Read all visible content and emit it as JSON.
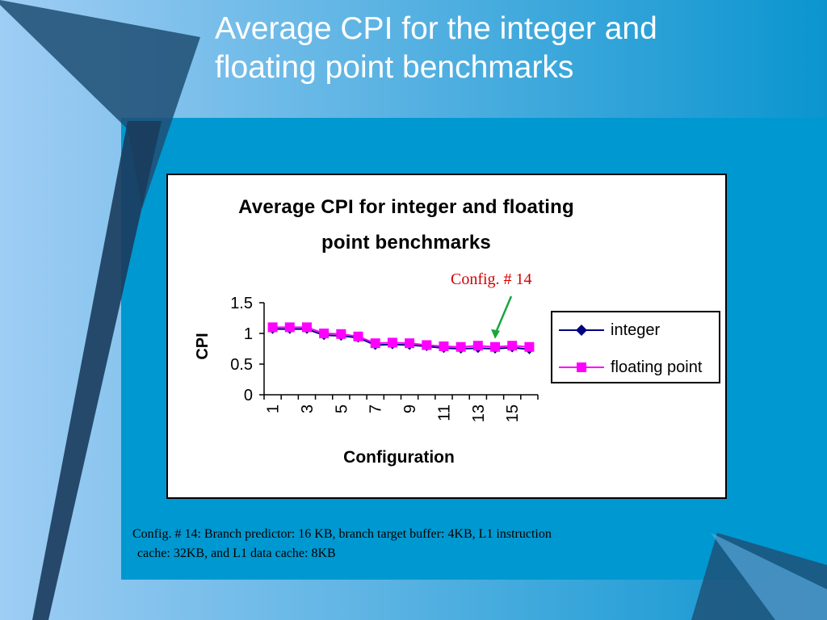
{
  "slide": {
    "title_line1": "Average CPI for the integer and",
    "title_line2": "floating point benchmarks",
    "footnote_line1": "Config. # 14: Branch predictor: 16 KB, branch target buffer: 4KB, L1 instruction",
    "footnote_line2": "cache: 32KB, and L1 data cache: 8KB",
    "colors": {
      "background_light": "#8dc3f0",
      "background_mid": "#0a96cf",
      "dark_band": "#1f4e73",
      "title_text": "#ffffff"
    }
  },
  "annotation": {
    "text": "Config. # 14",
    "color": "#d40000",
    "arrow_color": "#1aa63c",
    "target_configuration": 14
  },
  "chart_data": {
    "type": "line",
    "title_line1": "Average CPI for integer and floating",
    "title_line2": "point benchmarks",
    "xlabel": "Configuration",
    "ylabel": "CPI",
    "x": [
      1,
      2,
      3,
      4,
      5,
      6,
      7,
      8,
      9,
      10,
      11,
      12,
      13,
      14,
      15,
      16
    ],
    "x_tick_labels": [
      "1",
      "3",
      "5",
      "7",
      "9",
      "11",
      "13",
      "15"
    ],
    "y_ticks": [
      "0",
      "0.5",
      "1",
      "1.5"
    ],
    "ylim": [
      0,
      1.5
    ],
    "grid": false,
    "legend_position": "right",
    "series": [
      {
        "name": "integer",
        "color": "#000080",
        "marker": "diamond",
        "values": [
          1.07,
          1.07,
          1.07,
          0.97,
          0.96,
          0.93,
          0.81,
          0.82,
          0.81,
          0.79,
          0.76,
          0.75,
          0.76,
          0.75,
          0.77,
          0.74
        ]
      },
      {
        "name": "floating point",
        "color": "#ff00ff",
        "marker": "square",
        "values": [
          1.1,
          1.1,
          1.1,
          1.0,
          0.99,
          0.95,
          0.84,
          0.85,
          0.84,
          0.81,
          0.79,
          0.78,
          0.8,
          0.78,
          0.8,
          0.78
        ]
      }
    ]
  }
}
